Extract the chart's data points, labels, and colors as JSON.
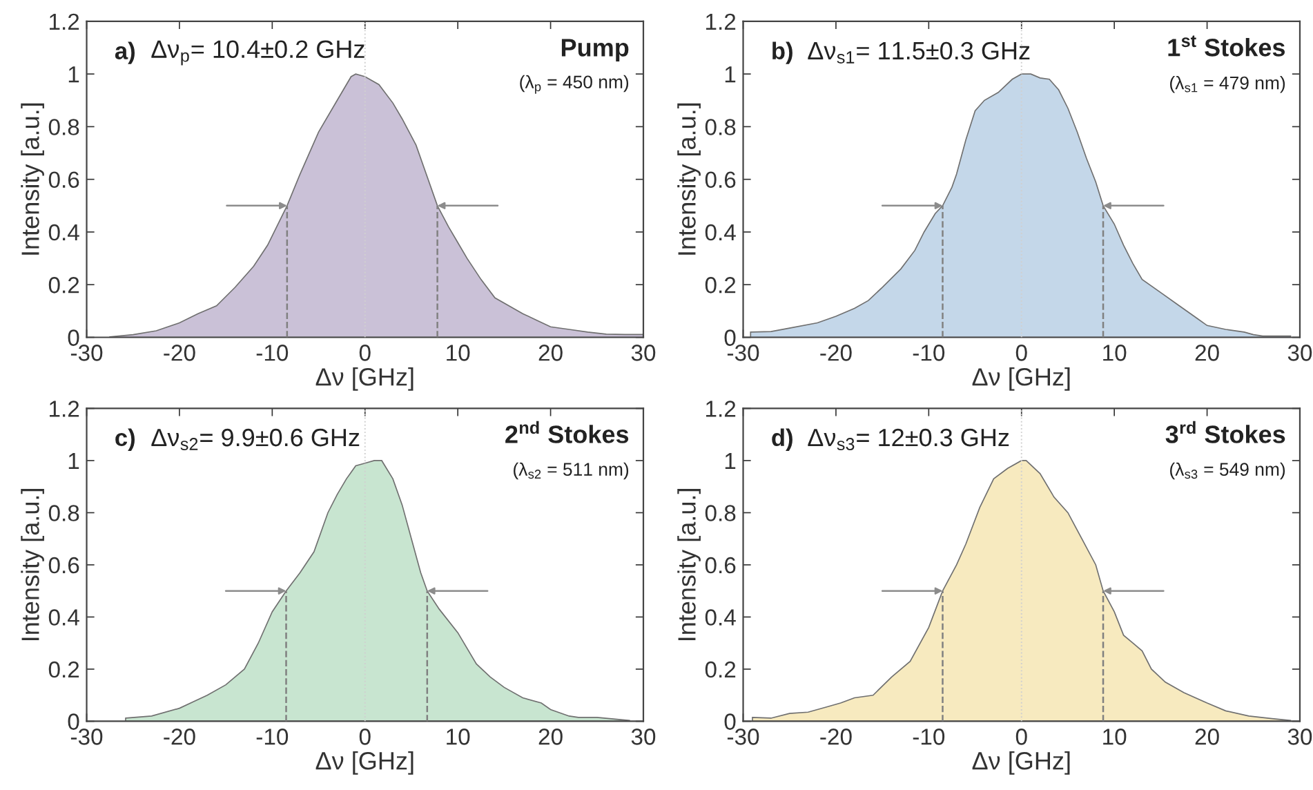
{
  "chart_data": [
    {
      "type": "area",
      "xlabel": "Δν [GHz]",
      "ylabel": "Intensity [a.u.]",
      "xlim": [
        -30,
        30
      ],
      "ylim": [
        0,
        1.2
      ],
      "xticks": [
        -30,
        -20,
        -10,
        0,
        10,
        20,
        30
      ],
      "yticks": [
        0,
        0.2,
        0.4,
        0.6,
        0.8,
        1,
        1.2
      ],
      "grid": false,
      "legend": false,
      "annotations": [
        "a)",
        "Δν$_{p}$= 10.4±0.2 GHz",
        "Pump",
        "(λ$_{p}$ = 450 nm)"
      ],
      "ref_lines": [
        {
          "axis": "x",
          "value": 0,
          "color": "#d0d0d0",
          "line_style": "dotted"
        }
      ],
      "series": [
        {
          "color": "#cac1d7",
          "x": [
            -27.5,
            -25,
            -22.5,
            -20,
            -18,
            -16,
            -14,
            -12,
            -10.5,
            -8.4,
            -7,
            -5,
            -3,
            -1.5,
            -1,
            0,
            1.5,
            3,
            4,
            5.5,
            7.8,
            9,
            10,
            11,
            12.5,
            14,
            15.5,
            17,
            18.5,
            20,
            22,
            24,
            26,
            28,
            30
          ],
          "values": [
            0.002,
            0.01,
            0.025,
            0.055,
            0.09,
            0.12,
            0.19,
            0.27,
            0.35,
            0.5,
            0.62,
            0.78,
            0.9,
            0.99,
            1.0,
            0.99,
            0.96,
            0.89,
            0.83,
            0.73,
            0.5,
            0.42,
            0.36,
            0.3,
            0.22,
            0.15,
            0.12,
            0.09,
            0.065,
            0.04,
            0.03,
            0.02,
            0.012,
            0.011,
            0.011
          ]
        },
        {
          "type": "line",
          "color": "#808080",
          "line_style": "dashed",
          "x": [
            -8.4,
            -8.4
          ],
          "values": [
            0,
            0.5
          ]
        },
        {
          "type": "line",
          "color": "#808080",
          "line_style": "dashed",
          "x": [
            7.8,
            7.8
          ],
          "values": [
            0,
            0.5
          ]
        }
      ]
    },
    {
      "type": "area",
      "xlabel": "Δν [GHz]",
      "ylabel": "Intensity [a.u.]",
      "xlim": [
        -30,
        30
      ],
      "ylim": [
        0,
        1.2
      ],
      "xticks": [
        -30,
        -20,
        -10,
        0,
        10,
        20,
        30
      ],
      "yticks": [
        0,
        0.2,
        0.4,
        0.6,
        0.8,
        1,
        1.2
      ],
      "grid": false,
      "legend": false,
      "annotations": [
        "b)",
        "Δν$_{s1}$= 11.5±0.3 GHz",
        "1$^{st}$ Stokes",
        "(λ$_{s1}$ = 479 nm)"
      ],
      "ref_lines": [
        {
          "axis": "x",
          "value": 0,
          "color": "#d0d0d0",
          "line_style": "dotted"
        }
      ],
      "series": [
        {
          "color": "#c4d7e9",
          "x": [
            -29.2,
            -27,
            -25,
            -22,
            -20,
            -18,
            -16.5,
            -15,
            -13,
            -11.5,
            -10.5,
            -9.3,
            -8.5,
            -7.5,
            -7,
            -6,
            -5,
            -4,
            -2.5,
            -1,
            0,
            1,
            2,
            3,
            4,
            5,
            6,
            7,
            8,
            8.8,
            10,
            11,
            12,
            13,
            15,
            17,
            19,
            20,
            22,
            24,
            25,
            26,
            29
          ],
          "values": [
            0.02,
            0.022,
            0.035,
            0.055,
            0.08,
            0.11,
            0.14,
            0.19,
            0.26,
            0.33,
            0.4,
            0.47,
            0.5,
            0.57,
            0.62,
            0.75,
            0.86,
            0.9,
            0.93,
            0.98,
            1.0,
            1.0,
            0.985,
            0.98,
            0.94,
            0.87,
            0.78,
            0.68,
            0.59,
            0.5,
            0.43,
            0.35,
            0.28,
            0.22,
            0.17,
            0.12,
            0.07,
            0.045,
            0.03,
            0.02,
            0.01,
            0.005,
            0.005
          ]
        },
        {
          "type": "line",
          "color": "#808080",
          "line_style": "dashed",
          "x": [
            -8.5,
            -8.5
          ],
          "values": [
            0,
            0.5
          ]
        },
        {
          "type": "line",
          "color": "#808080",
          "line_style": "dashed",
          "x": [
            8.8,
            8.8
          ],
          "values": [
            0,
            0.5
          ]
        }
      ]
    },
    {
      "type": "area",
      "xlabel": "Δν [GHz]",
      "ylabel": "Intensity [a.u.]",
      "xlim": [
        -30,
        30
      ],
      "ylim": [
        0,
        1.2
      ],
      "xticks": [
        -30,
        -20,
        -10,
        0,
        10,
        20,
        30
      ],
      "yticks": [
        0,
        0.2,
        0.4,
        0.6,
        0.8,
        1,
        1.2
      ],
      "grid": false,
      "legend": false,
      "annotations": [
        "c)",
        "Δν$_{s2}$= 9.9±0.6 GHz",
        "2$^{nd}$ Stokes",
        "(λ$_{s2}$ = 511 nm)"
      ],
      "ref_lines": [
        {
          "axis": "x",
          "value": 0,
          "color": "#d0d0d0",
          "line_style": "dotted"
        }
      ],
      "series": [
        {
          "color": "#c8e5d0",
          "x": [
            -25.8,
            -23,
            -20,
            -17,
            -15,
            -13,
            -11.5,
            -10,
            -8.5,
            -7,
            -5.5,
            -4,
            -3,
            -2,
            -1,
            0,
            1,
            1.8,
            3,
            4,
            5,
            6,
            6.7,
            8,
            10,
            12,
            13.5,
            15,
            17,
            19,
            20,
            22,
            23,
            25,
            28.5
          ],
          "values": [
            0.012,
            0.02,
            0.05,
            0.1,
            0.14,
            0.2,
            0.3,
            0.42,
            0.5,
            0.57,
            0.65,
            0.8,
            0.87,
            0.93,
            0.98,
            0.99,
            1.0,
            1.0,
            0.93,
            0.83,
            0.7,
            0.57,
            0.5,
            0.43,
            0.34,
            0.22,
            0.17,
            0.13,
            0.09,
            0.07,
            0.045,
            0.02,
            0.015,
            0.015,
            0.003
          ]
        },
        {
          "type": "line",
          "color": "#808080",
          "line_style": "dashed",
          "x": [
            -8.5,
            -8.5
          ],
          "values": [
            0,
            0.5
          ]
        },
        {
          "type": "line",
          "color": "#808080",
          "line_style": "dashed",
          "x": [
            6.7,
            6.7
          ],
          "values": [
            0,
            0.5
          ]
        }
      ]
    },
    {
      "type": "area",
      "xlabel": "Δν [GHz]",
      "ylabel": "Intensity [a.u.]",
      "xlim": [
        -30,
        30
      ],
      "ylim": [
        0,
        1.2
      ],
      "xticks": [
        -30,
        -20,
        -10,
        0,
        10,
        20,
        30
      ],
      "yticks": [
        0,
        0.2,
        0.4,
        0.6,
        0.8,
        1,
        1.2
      ],
      "grid": false,
      "legend": false,
      "annotations": [
        "d)",
        "Δν$_{s3}$= 12±0.3 GHz",
        "3$^{rd}$ Stokes",
        "(λ$_{s3}$ = 549 nm)"
      ],
      "ref_lines": [
        {
          "axis": "x",
          "value": 0,
          "color": "#d0d0d0",
          "line_style": "dotted"
        }
      ],
      "series": [
        {
          "color": "#f7eabf",
          "x": [
            -29,
            -27,
            -25,
            -23,
            -21,
            -19.5,
            -18,
            -16,
            -14,
            -12,
            -10,
            -8.5,
            -7,
            -6,
            -4.5,
            -3,
            -1.5,
            0,
            0.5,
            2,
            3.5,
            5,
            6.5,
            8,
            8.8,
            10,
            11,
            12,
            13,
            14,
            15.5,
            17.5,
            20,
            22,
            24.5,
            27,
            29
          ],
          "values": [
            0.015,
            0.012,
            0.03,
            0.035,
            0.055,
            0.07,
            0.09,
            0.1,
            0.17,
            0.23,
            0.36,
            0.5,
            0.6,
            0.68,
            0.82,
            0.93,
            0.97,
            1.0,
            1.0,
            0.95,
            0.86,
            0.8,
            0.7,
            0.6,
            0.5,
            0.42,
            0.33,
            0.3,
            0.27,
            0.2,
            0.15,
            0.11,
            0.07,
            0.04,
            0.02,
            0.01,
            0.003
          ]
        },
        {
          "type": "line",
          "color": "#808080",
          "line_style": "dashed",
          "x": [
            -8.5,
            -8.5
          ],
          "values": [
            0,
            0.5
          ]
        },
        {
          "type": "line",
          "color": "#808080",
          "line_style": "dashed",
          "x": [
            8.8,
            8.8
          ],
          "values": [
            0,
            0.5
          ]
        }
      ]
    }
  ]
}
